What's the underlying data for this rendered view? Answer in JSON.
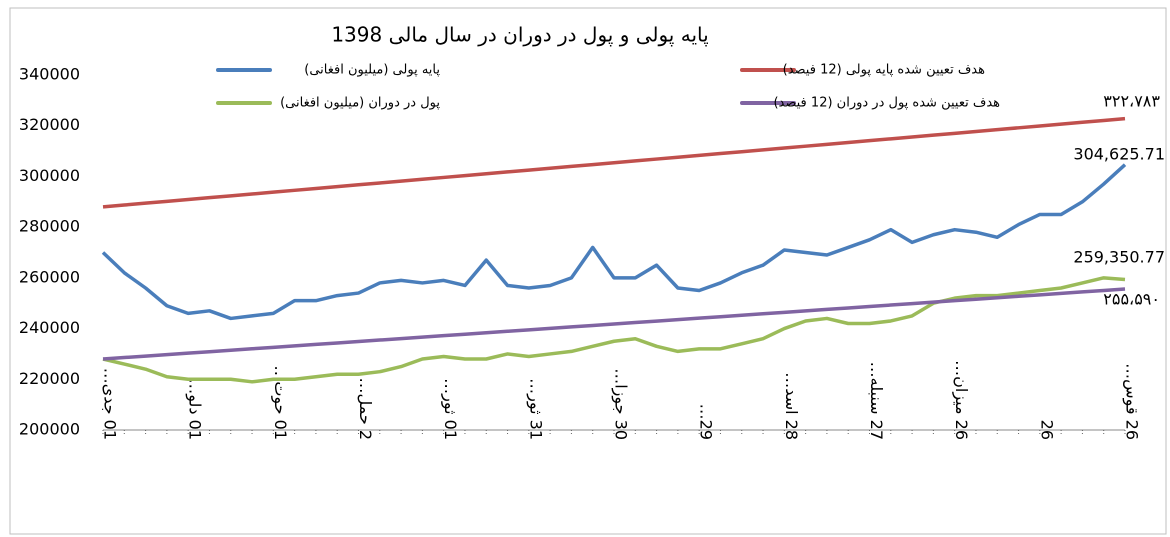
{
  "chart_data": {
    "type": "line",
    "title": "پایه پولی و پول در دوران در سال مالی 1398",
    "categories": [
      "01 جدی…",
      null,
      null,
      null,
      "01 دلو…",
      null,
      null,
      null,
      "01 حوت…",
      null,
      null,
      null,
      "2 حمل…",
      null,
      null,
      null,
      "01 ثور…",
      null,
      null,
      null,
      "31 ثور…",
      null,
      null,
      null,
      "30 جوزا…",
      null,
      null,
      null,
      "29…",
      null,
      null,
      null,
      "28 اسد…",
      null,
      null,
      null,
      "27 سنبله…",
      null,
      null,
      null,
      "26 میزان…",
      null,
      null,
      null,
      "26",
      null,
      null,
      null,
      "26 قوس…"
    ],
    "series": [
      {
        "name": "پایه پولی (میلیون افغانی)",
        "color": "#4a7ebb",
        "values": [
          270000,
          262000,
          256000,
          249000,
          246000,
          247000,
          244000,
          245000,
          246000,
          251000,
          251000,
          253000,
          254000,
          258000,
          259000,
          258000,
          259000,
          257000,
          267000,
          257000,
          256000,
          257000,
          260000,
          272000,
          260000,
          260000,
          265000,
          256000,
          255000,
          258000,
          262000,
          265000,
          271000,
          270000,
          269000,
          272000,
          275000,
          279000,
          274000,
          277000,
          279000,
          278000,
          276000,
          281000,
          285000,
          285000,
          290000,
          297000,
          304625.71
        ],
        "value_labels": [
          null,
          null,
          null,
          null,
          null,
          null,
          null,
          null,
          null,
          null,
          null,
          null,
          null,
          null,
          null,
          null,
          null,
          null,
          null,
          null,
          null,
          null,
          null,
          null,
          null,
          null,
          null,
          null,
          null,
          null,
          null,
          null,
          null,
          null,
          null,
          null,
          null,
          null,
          null,
          null,
          null,
          null,
          null,
          null,
          null,
          null,
          null,
          null,
          "304,625.71"
        ]
      },
      {
        "name": "هدف تعیین شده پایه پولی (12 فیصد)",
        "color": "#c0504d",
        "values": [
          288000,
          288725,
          289450,
          290175,
          290900,
          291625,
          292350,
          293075,
          293800,
          294525,
          295250,
          295975,
          296700,
          297425,
          298150,
          298875,
          299600,
          300325,
          301050,
          301775,
          302500,
          303225,
          303950,
          304675,
          305400,
          306125,
          306850,
          307575,
          308300,
          309025,
          309750,
          310475,
          311200,
          311925,
          312650,
          313375,
          314100,
          314825,
          315550,
          316275,
          317000,
          317725,
          318450,
          319175,
          319900,
          320625,
          321350,
          322075,
          322783
        ],
        "value_labels": [
          null,
          null,
          null,
          null,
          null,
          null,
          null,
          null,
          null,
          null,
          null,
          null,
          null,
          null,
          null,
          null,
          null,
          null,
          null,
          null,
          null,
          null,
          null,
          null,
          null,
          null,
          null,
          null,
          null,
          null,
          null,
          null,
          null,
          null,
          null,
          null,
          null,
          null,
          null,
          null,
          null,
          null,
          null,
          null,
          null,
          null,
          null,
          null,
          "۳۲۲،۷۸۳"
        ]
      },
      {
        "name": "پول در دوران (میلیون افغانی)",
        "color": "#9bbb59",
        "values": [
          228000,
          226000,
          224000,
          221000,
          220000,
          220000,
          220000,
          219000,
          220000,
          220000,
          221000,
          222000,
          222000,
          223000,
          225000,
          228000,
          229000,
          228000,
          228000,
          230000,
          229000,
          230000,
          231000,
          233000,
          235000,
          236000,
          233000,
          231000,
          232000,
          232000,
          234000,
          236000,
          240000,
          243000,
          244000,
          242000,
          242000,
          243000,
          245000,
          250000,
          252000,
          253000,
          253000,
          254000,
          255000,
          256000,
          258000,
          260000,
          259350.77
        ],
        "value_labels": [
          null,
          null,
          null,
          null,
          null,
          null,
          null,
          null,
          null,
          null,
          null,
          null,
          null,
          null,
          null,
          null,
          null,
          null,
          null,
          null,
          null,
          null,
          null,
          null,
          null,
          null,
          null,
          null,
          null,
          null,
          null,
          null,
          null,
          null,
          null,
          null,
          null,
          null,
          null,
          null,
          null,
          null,
          null,
          null,
          null,
          null,
          null,
          null,
          "259,350.77"
        ]
      },
      {
        "name": "هدف تعیین شده پول در دوران (12 فیصد)",
        "color": "#8064a2",
        "values": [
          228000,
          228575,
          229150,
          229725,
          230300,
          230875,
          231450,
          232025,
          232600,
          233175,
          233750,
          234325,
          234900,
          235475,
          236050,
          236625,
          237200,
          237775,
          238350,
          238925,
          239500,
          240075,
          240650,
          241225,
          241800,
          242375,
          242950,
          243525,
          244100,
          244675,
          245250,
          245825,
          246400,
          246975,
          247550,
          248125,
          248700,
          249275,
          249850,
          250425,
          251000,
          251575,
          252150,
          252725,
          253300,
          253875,
          254450,
          255025,
          255590
        ],
        "value_labels": [
          null,
          null,
          null,
          null,
          null,
          null,
          null,
          null,
          null,
          null,
          null,
          null,
          null,
          null,
          null,
          null,
          null,
          null,
          null,
          null,
          null,
          null,
          null,
          null,
          null,
          null,
          null,
          null,
          null,
          null,
          null,
          null,
          null,
          null,
          null,
          null,
          null,
          null,
          null,
          null,
          null,
          null,
          null,
          null,
          null,
          null,
          null,
          null,
          "۲۵۵،۵۹۰"
        ]
      }
    ],
    "ylim": [
      200000,
      340000
    ],
    "yticks": [
      200000,
      220000,
      240000,
      260000,
      280000,
      300000,
      320000,
      340000
    ],
    "grid": false
  }
}
